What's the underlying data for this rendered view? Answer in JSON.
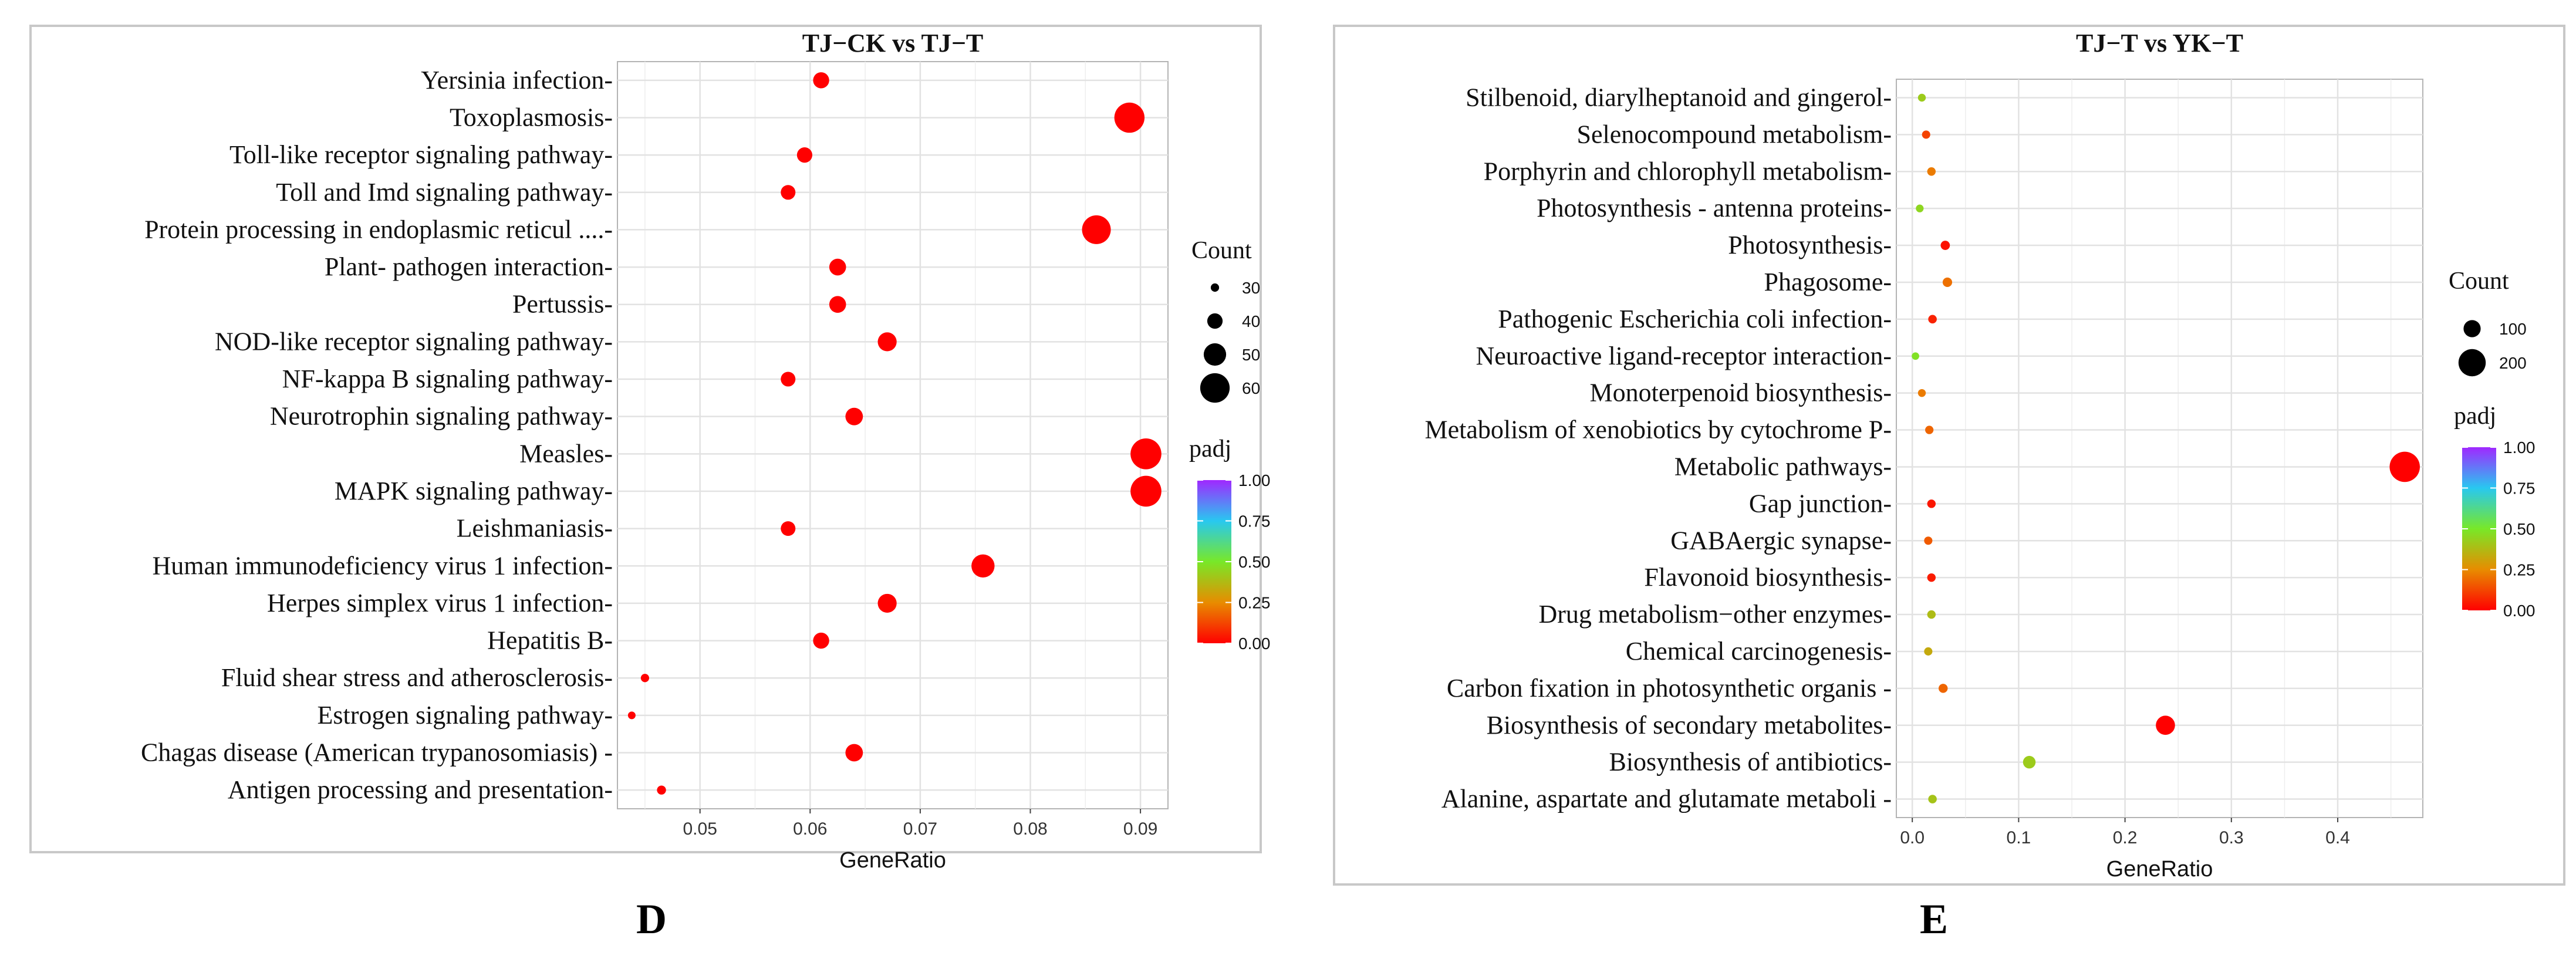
{
  "chart_data": [
    {
      "type": "scatter",
      "panel_letter": "D",
      "title": "TJ−CK vs TJ−T",
      "xlabel": "GeneRatio",
      "ylabel": "",
      "xlim": [
        0.0425,
        0.0925
      ],
      "xticks": [
        0.05,
        0.06,
        0.07,
        0.08,
        0.09
      ],
      "xtick_labels": [
        "0.05",
        "0.06",
        "0.07",
        "0.08",
        "0.09"
      ],
      "grid": true,
      "categories": [
        "Yersinia infection-",
        "Toxoplasmosis-",
        "Toll-like receptor signaling pathway-",
        "Toll and Imd signaling pathway-",
        "Protein processing in endoplasmic reticul ....-",
        "Plant- pathogen interaction-",
        "Pertussis-",
        "NOD-like receptor signaling pathway-",
        "NF-kappa B signaling pathway-",
        "Neurotrophin signaling pathway-",
        "Measles-",
        "MAPK signaling pathway-",
        "Leishmaniasis-",
        "Human immunodeficiency virus 1 infection-",
        "Herpes simplex virus 1 infection-",
        "Hepatitis B-",
        "Fluid shear stress and atherosclerosis-",
        "Estrogen signaling pathway-",
        "Chagas disease (American trypanosomiasis) -",
        "Antigen processing and presentation-"
      ],
      "gene_ratio": [
        0.061,
        0.089,
        0.0595,
        0.058,
        0.086,
        0.0625,
        0.0625,
        0.067,
        0.058,
        0.064,
        0.0905,
        0.0905,
        0.058,
        0.0757,
        0.067,
        0.061,
        0.045,
        0.0438,
        0.064,
        0.0465
      ],
      "count": [
        41,
        61,
        40,
        39,
        59,
        42,
        42,
        45,
        39,
        43,
        62,
        62,
        39,
        51,
        45,
        41,
        30,
        29,
        43,
        31
      ],
      "padj": [
        0.0,
        0.0,
        0.0,
        0.0,
        0.0,
        0.0,
        0.0,
        0.0,
        0.0,
        0.0,
        0.0,
        0.0,
        0.0,
        0.0,
        0.0,
        0.0,
        0.0,
        0.0,
        0.0,
        0.0
      ],
      "size_legend": {
        "title": "Count",
        "values": [
          30,
          40,
          50,
          60
        ],
        "labels": [
          "30",
          "40",
          "50",
          "60"
        ]
      },
      "color_legend": {
        "title": "padj",
        "range": [
          0,
          1
        ],
        "labels": [
          "1.00",
          "0.75",
          "0.50",
          "0.25",
          "0.00"
        ]
      }
    },
    {
      "type": "scatter",
      "panel_letter": "E",
      "title": "TJ−T vs YK−T",
      "xlabel": "GeneRatio",
      "ylabel": "",
      "xlim": [
        -0.015,
        0.48
      ],
      "xticks": [
        0.0,
        0.1,
        0.2,
        0.3,
        0.4
      ],
      "xtick_labels": [
        "0.0",
        "0.1",
        "0.2",
        "0.3",
        "0.4"
      ],
      "grid": true,
      "categories": [
        "Stilbenoid, diarylheptanoid and gingerol-",
        "Selenocompound metabolism-",
        "Porphyrin and chlorophyll metabolism-",
        "Photosynthesis - antenna proteins-",
        "Photosynthesis-",
        "Phagosome-",
        "Pathogenic Escherichia coli infection-",
        "Neuroactive ligand-receptor interaction-",
        "Monoterpenoid biosynthesis-",
        "Metabolism of xenobiotics by cytochrome P-",
        "Metabolic pathways-",
        "Gap junction-",
        "GABAergic synapse-",
        "Flavonoid biosynthesis-",
        "Drug metabolism−other enzymes-",
        "Chemical carcinogenesis-",
        "Carbon fixation in photosynthetic organis -",
        "Biosynthesis of secondary metabolites-",
        "Biosynthesis of antibiotics-",
        "Alanine, aspartate and glutamate metaboli -"
      ],
      "gene_ratio": [
        0.009,
        0.013,
        0.018,
        0.007,
        0.031,
        0.033,
        0.019,
        0.003,
        0.009,
        0.016,
        0.463,
        0.018,
        0.015,
        0.018,
        0.018,
        0.015,
        0.029,
        0.238,
        0.11,
        0.019
      ],
      "count": [
        8,
        12,
        14,
        7,
        22,
        24,
        15,
        4,
        8,
        13,
        230,
        14,
        12,
        14,
        14,
        12,
        20,
        120,
        55,
        15
      ],
      "padj": [
        0.42,
        0.12,
        0.22,
        0.45,
        0.03,
        0.2,
        0.06,
        0.48,
        0.22,
        0.18,
        0.0,
        0.04,
        0.16,
        0.05,
        0.38,
        0.33,
        0.18,
        0.0,
        0.42,
        0.4
      ],
      "size_legend": {
        "title": "Count",
        "values": [
          100,
          200
        ],
        "labels": [
          "100",
          "200"
        ]
      },
      "color_legend": {
        "title": "padj",
        "range": [
          0,
          1
        ],
        "labels": [
          "1.00",
          "0.75",
          "0.50",
          "0.25",
          "0.00"
        ]
      }
    }
  ]
}
